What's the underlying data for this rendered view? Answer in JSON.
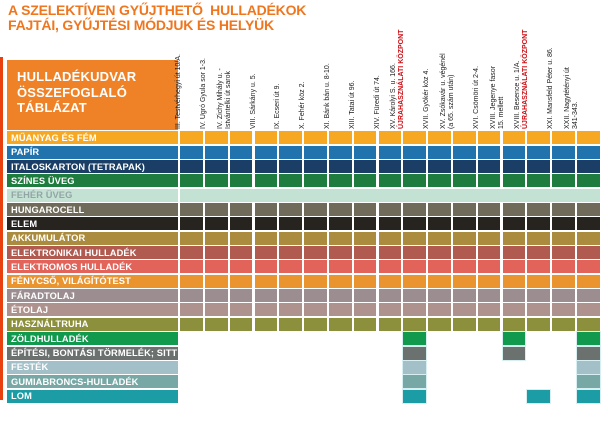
{
  "title": {
    "line1": "A SZELEKTÍVEN GYŰJTHETŐ  HULLADÉKOK",
    "line2": "FAJTÁI, GYŰJTÉSI MÓDJUK ÉS HELYÜK"
  },
  "summary_box": {
    "line1": "HULLADÉKUDVAR",
    "line2": "ÖSSZEFOGLALÓ",
    "line3": "TÁBLÁZAT"
  },
  "colors": {
    "title_orange": "#F0761E",
    "summary_box_orange": "#EF8227",
    "accent_bar_red": "#E8400E",
    "reuse_center_red": "#CC1016"
  },
  "columns": [
    {
      "lines": [
        "III. Testvérhegyi út 10/A."
      ],
      "highlight": null
    },
    {
      "lines": [
        "IV. Ugró Gyula sor 1-3."
      ],
      "highlight": null
    },
    {
      "lines": [
        "IV. Zichy Mihály u. -",
        "Istvántelki út sarok"
      ],
      "highlight": null
    },
    {
      "lines": [
        "VIII. Sárkány u. 5."
      ],
      "highlight": null
    },
    {
      "lines": [
        "IX. Ecseri út 9."
      ],
      "highlight": null
    },
    {
      "lines": [
        "X. Fehér köz 2."
      ],
      "highlight": null
    },
    {
      "lines": [
        "XI. Bánk bán u. 8-10."
      ],
      "highlight": null
    },
    {
      "lines": [
        "XIII. Tatai út 96."
      ],
      "highlight": null
    },
    {
      "lines": [
        "XIV. Füredi út 74."
      ],
      "highlight": null
    },
    {
      "lines": [
        "XV. Károlyi S. u. 166."
      ],
      "highlight": "ÚJRAHASZNÁLATI KÖZPONT"
    },
    {
      "lines": [
        "XVII. Gyökér köz 4."
      ],
      "highlight": null
    },
    {
      "lines": [
        "XV. Zsókavár u. végénél",
        "(a 65. szám után)"
      ],
      "highlight": null
    },
    {
      "lines": [
        "XVI. Csömöri út 2-4."
      ],
      "highlight": null
    },
    {
      "lines": [
        "XVIII. Jegenye fasor",
        "15. mellett"
      ],
      "highlight": null
    },
    {
      "lines": [
        "XVIII. Besence u. 1/A."
      ],
      "highlight": "ÚJRAHASZNÁLATI KÖZPONT"
    },
    {
      "lines": [
        "XXI. Mansfeld Péter u. 86."
      ],
      "highlight": null
    },
    {
      "lines": [
        "XXII. Nagytétényi út",
        "341-343."
      ],
      "highlight": null
    }
  ],
  "rows": [
    {
      "label": "MŰANYAG ÉS FÉM",
      "color": "#F7A823",
      "text_color": "#FFFFFF",
      "cells": [
        1,
        2,
        3,
        4,
        5,
        6,
        7,
        8,
        9,
        10,
        11,
        12,
        13,
        14,
        15,
        16,
        17
      ]
    },
    {
      "label": "PAPÍR",
      "color": "#2173AE",
      "text_color": "#FFFFFF",
      "cells": [
        1,
        2,
        3,
        4,
        5,
        6,
        7,
        8,
        9,
        10,
        11,
        12,
        13,
        14,
        15,
        16,
        17
      ]
    },
    {
      "label": "ITALOSKARTON (TETRAPAK)",
      "color": "#1A3E66",
      "text_color": "#FFFFFF",
      "cells": [
        1,
        2,
        3,
        4,
        5,
        6,
        7,
        8,
        9,
        10,
        11,
        12,
        13,
        14,
        15,
        16,
        17
      ]
    },
    {
      "label": "SZÍNES ÜVEG",
      "color": "#1E7C3F",
      "text_color": "#FFFFFF",
      "cells": [
        1,
        2,
        3,
        4,
        5,
        6,
        7,
        8,
        9,
        10,
        11,
        12,
        13,
        14,
        15,
        16,
        17
      ]
    },
    {
      "label": "FEHÉR ÜVEG",
      "color": "#C3E2D3",
      "text_color": "#93A4A6",
      "span_all": true,
      "cells": [
        1,
        2,
        3,
        4,
        5,
        6,
        7,
        8,
        9,
        10,
        11,
        12,
        13,
        14,
        15,
        16,
        17
      ]
    },
    {
      "label": "HUNGAROCELL",
      "color": "#6F6A59",
      "text_color": "#FFFFFF",
      "cells": [
        1,
        2,
        3,
        4,
        5,
        6,
        7,
        8,
        9,
        10,
        11,
        12,
        13,
        14,
        15,
        16,
        17
      ]
    },
    {
      "label": "ELEM",
      "color": "#272420",
      "text_color": "#FFFFFF",
      "cells": [
        1,
        2,
        3,
        4,
        5,
        6,
        7,
        8,
        9,
        10,
        11,
        12,
        13,
        14,
        15,
        16,
        17
      ]
    },
    {
      "label": "AKKUMULÁTOR",
      "color": "#AB8C3E",
      "text_color": "#FFFFFF",
      "cells": [
        1,
        2,
        3,
        4,
        5,
        6,
        7,
        8,
        9,
        10,
        11,
        12,
        13,
        14,
        15,
        16,
        17
      ]
    },
    {
      "label": "ELEKTRONIKAI HULLADÉK",
      "color": "#B15A50",
      "text_color": "#FFFFFF",
      "cells": [
        1,
        2,
        3,
        4,
        5,
        6,
        7,
        8,
        9,
        10,
        11,
        12,
        13,
        14,
        15,
        16,
        17
      ]
    },
    {
      "label": "ELEKTROMOS HULLADÉK",
      "color": "#E2635A",
      "text_color": "#FFFFFF",
      "cells": [
        1,
        2,
        3,
        4,
        5,
        6,
        7,
        8,
        9,
        10,
        11,
        12,
        13,
        14,
        15,
        16,
        17
      ]
    },
    {
      "label": "FÉNYCSŐ, VILÁGÍTÓTEST",
      "color": "#E9942F",
      "text_color": "#FFFFFF",
      "cells": [
        1,
        2,
        3,
        4,
        5,
        6,
        7,
        8,
        9,
        10,
        11,
        12,
        13,
        14,
        15,
        16,
        17
      ]
    },
    {
      "label": "FÁRADTOLAJ",
      "color": "#9C8E90",
      "text_color": "#FFFFFF",
      "cells": [
        1,
        2,
        3,
        4,
        5,
        6,
        7,
        8,
        9,
        10,
        11,
        12,
        13,
        14,
        15,
        16,
        17
      ]
    },
    {
      "label": "ÉTOLAJ",
      "color": "#AD928E",
      "text_color": "#FFFFFF",
      "cells": [
        1,
        2,
        3,
        4,
        5,
        6,
        7,
        8,
        9,
        10,
        11,
        12,
        13,
        14,
        15,
        16,
        17
      ]
    },
    {
      "label": "HASZNÁLTRUHA",
      "color": "#8C8F3C",
      "text_color": "#FFFFFF",
      "cells": [
        1,
        2,
        3,
        4,
        5,
        6,
        7,
        8,
        9,
        10,
        11,
        12,
        13,
        14,
        15,
        16,
        17
      ]
    },
    {
      "label": "ZÖLDHULLADÉK",
      "color": "#119A4D",
      "text_color": "#FFFFFF",
      "cells": [
        10,
        14,
        17
      ]
    },
    {
      "label": "ÉPÍTÉSI, BONTÁSI TÖRMELÉK; SITT",
      "color": "#6B716F",
      "text_color": "#FFFFFF",
      "cells": [
        10,
        14,
        17
      ]
    },
    {
      "label": "FESTÉK",
      "color": "#A3C0C9",
      "text_color": "#FFFFFF",
      "cells": [
        10,
        17
      ]
    },
    {
      "label": "GUMIABRONCS-HULLADÉK",
      "color": "#78A8A5",
      "text_color": "#FFFFFF",
      "cells": [
        10,
        17
      ]
    },
    {
      "label": "LOM",
      "color": "#1C9DA6",
      "text_color": "#FFFFFF",
      "cells": [
        10,
        15,
        17
      ]
    }
  ],
  "chart_data": {
    "type": "table",
    "title": "A szelektíven gyűjthető hulladékok fajtái, gyűjtési módjuk és helyük — Hulladékudvar összefoglaló táblázat",
    "columns": [
      "III. Testvérhegyi út 10/A.",
      "IV. Ugró Gyula sor 1-3.",
      "IV. Zichy Mihály u. - Istvántelki út sarok",
      "VIII. Sárkány u. 5.",
      "IX. Ecseri út 9.",
      "X. Fehér köz 2.",
      "XI. Bánk bán u. 8-10.",
      "XIII. Tatai út 96.",
      "XIV. Füredi út 74.",
      "XV. Károlyi S. u. 166. ÚJRAHASZNÁLATI KÖZPONT",
      "XVII. Gyökér köz 4.",
      "XV. Zsókavár u. végénél (a 65. szám után)",
      "XVI. Csömöri út 2-4.",
      "XVIII. Jegenye fasor 15. mellett",
      "XVIII. Besence u. 1/A. ÚJRAHASZNÁLATI KÖZPONT",
      "XXI. Mansfeld Péter u. 86.",
      "XXII. Nagytétényi út 341-343."
    ],
    "rows": [
      {
        "label": "MŰANYAG ÉS FÉM",
        "available_at_columns": [
          1,
          2,
          3,
          4,
          5,
          6,
          7,
          8,
          9,
          10,
          11,
          12,
          13,
          14,
          15,
          16,
          17
        ]
      },
      {
        "label": "PAPÍR",
        "available_at_columns": [
          1,
          2,
          3,
          4,
          5,
          6,
          7,
          8,
          9,
          10,
          11,
          12,
          13,
          14,
          15,
          16,
          17
        ]
      },
      {
        "label": "ITALOSKARTON (TETRAPAK)",
        "available_at_columns": [
          1,
          2,
          3,
          4,
          5,
          6,
          7,
          8,
          9,
          10,
          11,
          12,
          13,
          14,
          15,
          16,
          17
        ]
      },
      {
        "label": "SZÍNES ÜVEG",
        "available_at_columns": [
          1,
          2,
          3,
          4,
          5,
          6,
          7,
          8,
          9,
          10,
          11,
          12,
          13,
          14,
          15,
          16,
          17
        ]
      },
      {
        "label": "FEHÉR ÜVEG",
        "available_at_columns": [
          1,
          2,
          3,
          4,
          5,
          6,
          7,
          8,
          9,
          10,
          11,
          12,
          13,
          14,
          15,
          16,
          17
        ]
      },
      {
        "label": "HUNGAROCELL",
        "available_at_columns": [
          1,
          2,
          3,
          4,
          5,
          6,
          7,
          8,
          9,
          10,
          11,
          12,
          13,
          14,
          15,
          16,
          17
        ]
      },
      {
        "label": "ELEM",
        "available_at_columns": [
          1,
          2,
          3,
          4,
          5,
          6,
          7,
          8,
          9,
          10,
          11,
          12,
          13,
          14,
          15,
          16,
          17
        ]
      },
      {
        "label": "AKKUMULÁTOR",
        "available_at_columns": [
          1,
          2,
          3,
          4,
          5,
          6,
          7,
          8,
          9,
          10,
          11,
          12,
          13,
          14,
          15,
          16,
          17
        ]
      },
      {
        "label": "ELEKTRONIKAI HULLADÉK",
        "available_at_columns": [
          1,
          2,
          3,
          4,
          5,
          6,
          7,
          8,
          9,
          10,
          11,
          12,
          13,
          14,
          15,
          16,
          17
        ]
      },
      {
        "label": "ELEKTROMOS HULLADÉK",
        "available_at_columns": [
          1,
          2,
          3,
          4,
          5,
          6,
          7,
          8,
          9,
          10,
          11,
          12,
          13,
          14,
          15,
          16,
          17
        ]
      },
      {
        "label": "FÉNYCSŐ, VILÁGÍTÓTEST",
        "available_at_columns": [
          1,
          2,
          3,
          4,
          5,
          6,
          7,
          8,
          9,
          10,
          11,
          12,
          13,
          14,
          15,
          16,
          17
        ]
      },
      {
        "label": "FÁRADTOLAJ",
        "available_at_columns": [
          1,
          2,
          3,
          4,
          5,
          6,
          7,
          8,
          9,
          10,
          11,
          12,
          13,
          14,
          15,
          16,
          17
        ]
      },
      {
        "label": "ÉTOLAJ",
        "available_at_columns": [
          1,
          2,
          3,
          4,
          5,
          6,
          7,
          8,
          9,
          10,
          11,
          12,
          13,
          14,
          15,
          16,
          17
        ]
      },
      {
        "label": "HASZNÁLTRUHA",
        "available_at_columns": [
          1,
          2,
          3,
          4,
          5,
          6,
          7,
          8,
          9,
          10,
          11,
          12,
          13,
          14,
          15,
          16,
          17
        ]
      },
      {
        "label": "ZÖLDHULLADÉK",
        "available_at_columns": [
          10,
          14,
          17
        ]
      },
      {
        "label": "ÉPÍTÉSI, BONTÁSI TÖRMELÉK; SITT",
        "available_at_columns": [
          10,
          14,
          17
        ]
      },
      {
        "label": "FESTÉK",
        "available_at_columns": [
          10,
          17
        ]
      },
      {
        "label": "GUMIABRONCS-HULLADÉK",
        "available_at_columns": [
          10,
          17
        ]
      },
      {
        "label": "LOM",
        "available_at_columns": [
          10,
          15,
          17
        ]
      }
    ]
  }
}
